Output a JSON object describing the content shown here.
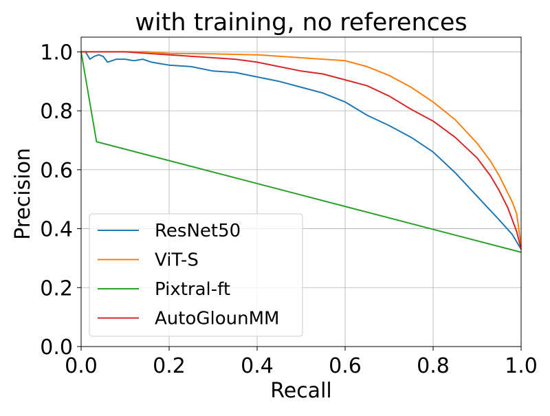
{
  "chart_data": {
    "type": "line",
    "title": "with training, no references",
    "xlabel": "Recall",
    "ylabel": "Precision",
    "xlim": [
      0,
      1
    ],
    "ylim": [
      0,
      1.05
    ],
    "xticks": [
      "0.0",
      "0.2",
      "0.4",
      "0.6",
      "0.8",
      "1.0"
    ],
    "yticks": [
      "0.0",
      "0.2",
      "0.4",
      "0.6",
      "0.8",
      "1.0"
    ],
    "xtick_values": [
      0,
      0.2,
      0.4,
      0.6,
      0.8,
      1.0
    ],
    "ytick_values": [
      0,
      0.2,
      0.4,
      0.6,
      0.8,
      1.0
    ],
    "grid": true,
    "legend_position": "lower-left",
    "series": [
      {
        "name": "ResNet50",
        "color": "#1f77b4",
        "x": [
          0.0,
          0.01,
          0.02,
          0.03,
          0.04,
          0.05,
          0.06,
          0.07,
          0.08,
          0.1,
          0.12,
          0.14,
          0.16,
          0.18,
          0.2,
          0.25,
          0.3,
          0.35,
          0.4,
          0.45,
          0.5,
          0.55,
          0.6,
          0.65,
          0.7,
          0.75,
          0.8,
          0.85,
          0.9,
          0.95,
          0.98,
          1.0
        ],
        "y": [
          1.0,
          1.0,
          0.975,
          0.985,
          0.99,
          0.985,
          0.965,
          0.97,
          0.975,
          0.975,
          0.97,
          0.975,
          0.965,
          0.96,
          0.955,
          0.95,
          0.935,
          0.93,
          0.915,
          0.9,
          0.88,
          0.86,
          0.83,
          0.785,
          0.75,
          0.71,
          0.66,
          0.59,
          0.51,
          0.43,
          0.38,
          0.33
        ]
      },
      {
        "name": "ViT-S",
        "color": "#ff7f0e",
        "x": [
          0.0,
          0.05,
          0.1,
          0.15,
          0.2,
          0.3,
          0.4,
          0.5,
          0.55,
          0.6,
          0.65,
          0.7,
          0.75,
          0.8,
          0.85,
          0.9,
          0.93,
          0.95,
          0.97,
          0.98,
          0.99,
          1.0
        ],
        "y": [
          1.0,
          1.0,
          1.0,
          1.0,
          0.995,
          0.993,
          0.99,
          0.98,
          0.975,
          0.97,
          0.95,
          0.92,
          0.88,
          0.83,
          0.77,
          0.69,
          0.63,
          0.58,
          0.52,
          0.49,
          0.45,
          0.34
        ]
      },
      {
        "name": "Pixtral-ft",
        "color": "#2ca02c",
        "x": [
          0.0,
          0.035,
          1.0
        ],
        "y": [
          1.0,
          0.695,
          0.32
        ]
      },
      {
        "name": "AutoGlounMM",
        "color": "#d62728",
        "x": [
          0.0,
          0.05,
          0.1,
          0.15,
          0.2,
          0.3,
          0.35,
          0.4,
          0.45,
          0.5,
          0.55,
          0.6,
          0.65,
          0.7,
          0.75,
          0.8,
          0.85,
          0.9,
          0.93,
          0.95,
          0.97,
          0.99,
          1.0
        ],
        "y": [
          1.0,
          1.0,
          1.0,
          0.995,
          0.99,
          0.98,
          0.975,
          0.965,
          0.95,
          0.935,
          0.925,
          0.905,
          0.885,
          0.85,
          0.805,
          0.765,
          0.71,
          0.64,
          0.58,
          0.53,
          0.47,
          0.39,
          0.33
        ]
      }
    ]
  }
}
